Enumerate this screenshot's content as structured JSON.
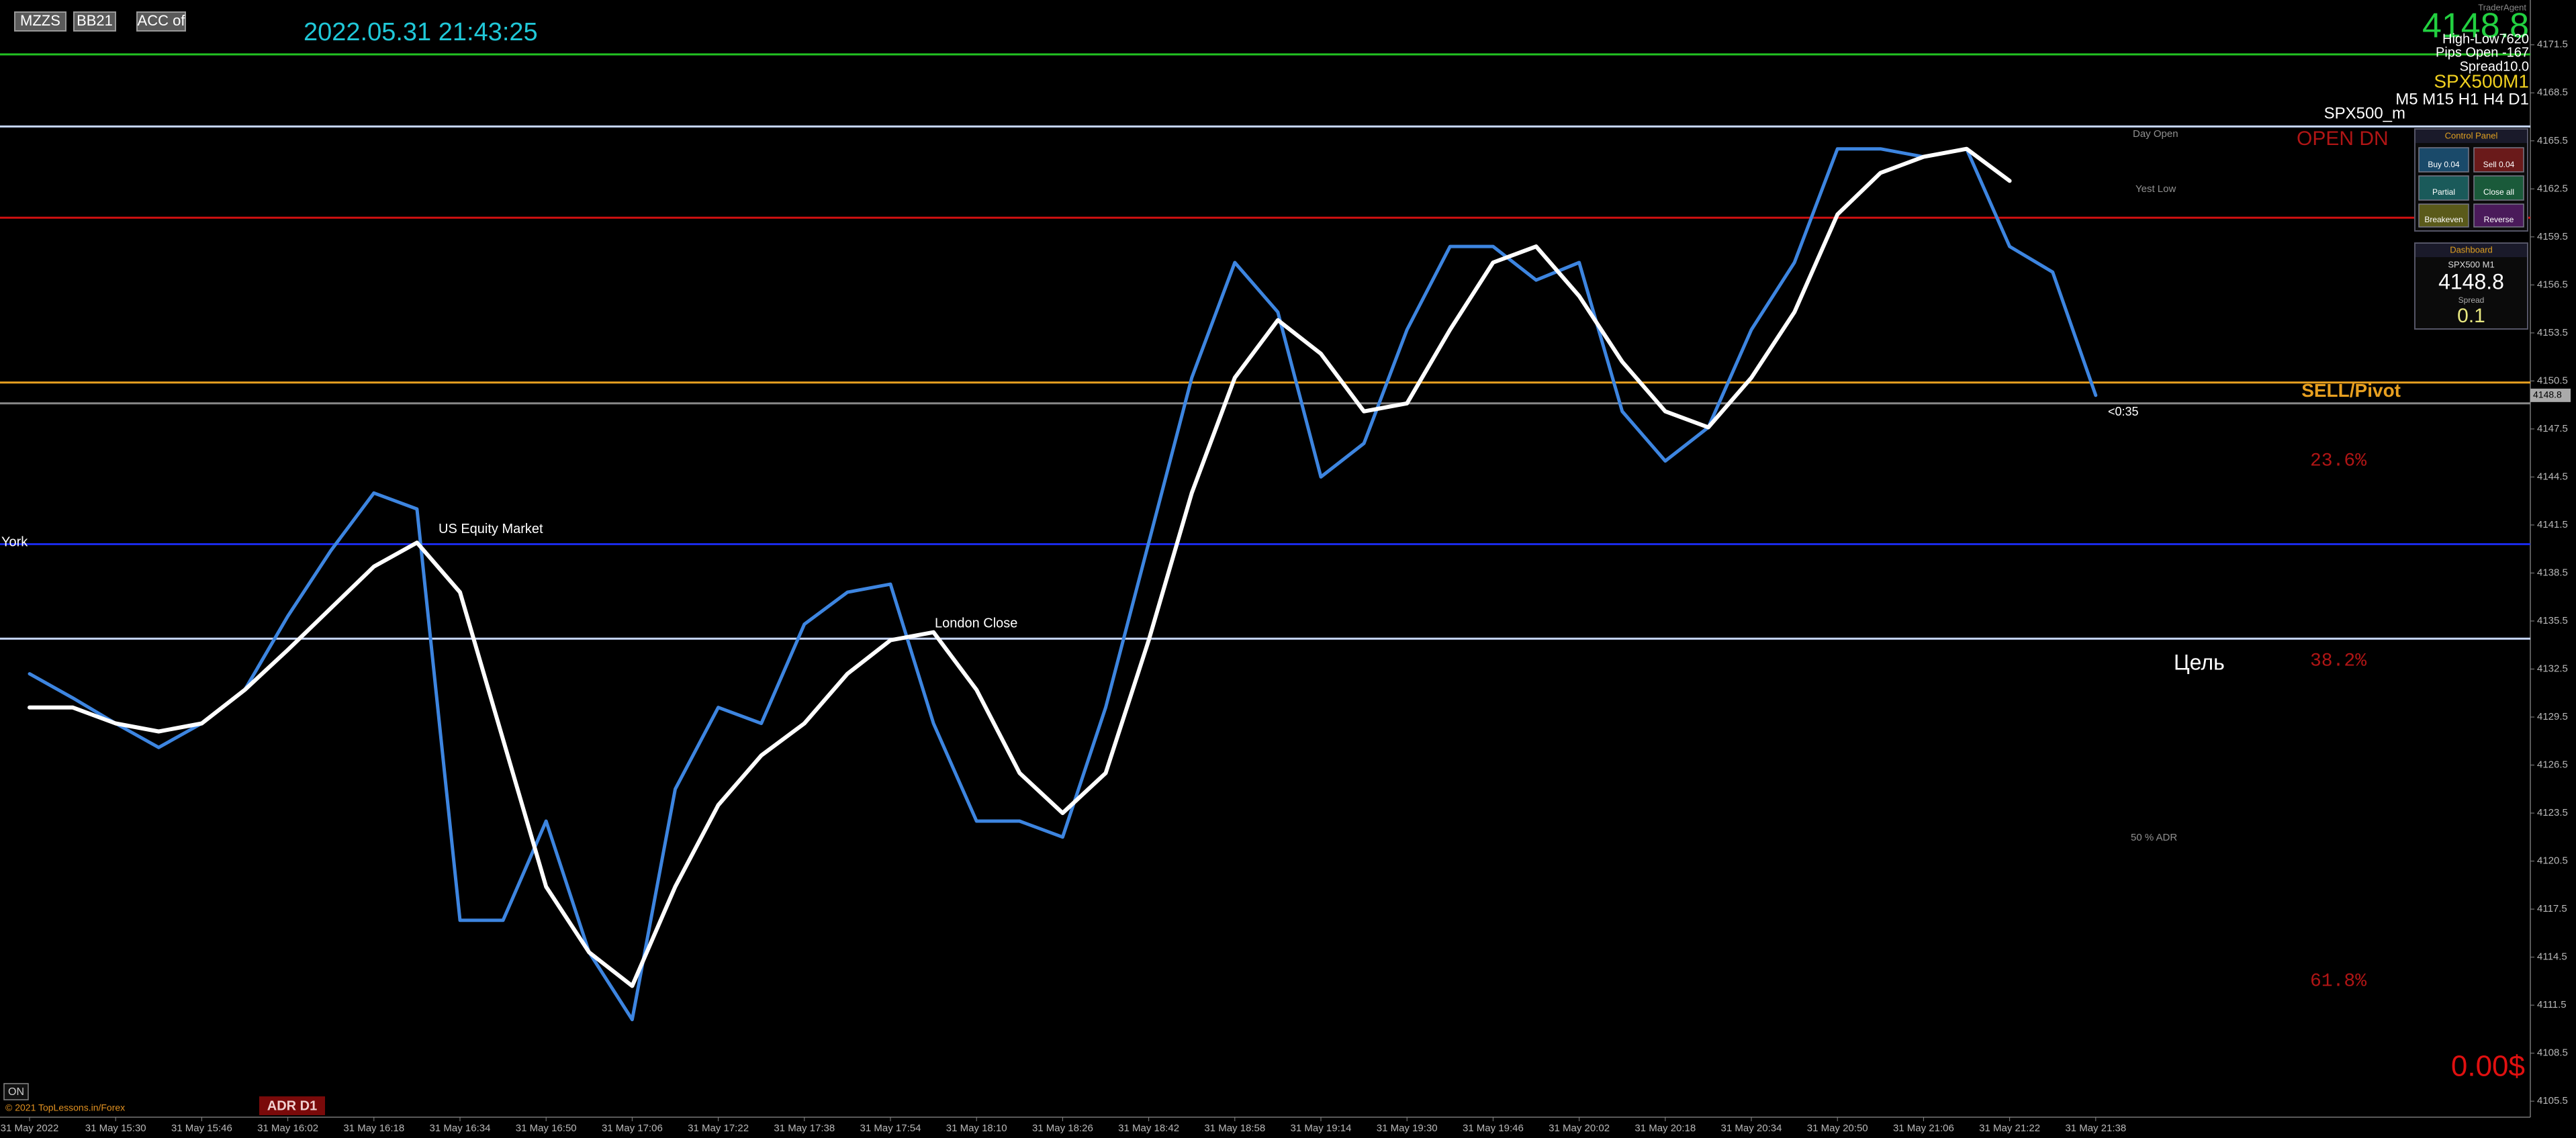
{
  "header": {
    "buttons": [
      "MZZS",
      "BB21",
      "ACC of"
    ],
    "datetime": "2022.05.31 21:43:25"
  },
  "info": {
    "brand": "TraderAgent",
    "price": "4148.8",
    "high_low": "High-Low7620",
    "pips_open": "Pips Open -167",
    "spread": "Spread10.0",
    "symbol": "SPX500M1",
    "timeframes": "M5 M15 H1 H4 D1",
    "symbol2": "SPX500_m"
  },
  "control_panel": {
    "title": "Control Panel",
    "buttons": [
      "Buy 0.04",
      "Sell 0.04",
      "Partial",
      "Close all",
      "Breakeven",
      "Reverse"
    ]
  },
  "dashboard": {
    "title": "Dashboard",
    "symbol": "SPX500 M1",
    "price": "4148.8",
    "spread_label": "Spread",
    "spread": "0.1"
  },
  "footer": {
    "on": "ON",
    "copyright": "© 2021 TopLessons.in/Forex",
    "adr": "ADR D1",
    "profit": "0.00$",
    "countdown": "<0:35"
  },
  "chart_data": {
    "type": "line",
    "categories": [
      "31 May 2022",
      null,
      "31 May 15:30",
      null,
      "31 May 15:46",
      null,
      "31 May 16:02",
      null,
      "31 May 16:18",
      null,
      "31 May 16:34",
      null,
      "31 May 16:50",
      null,
      "31 May 17:06",
      null,
      "31 May 17:22",
      null,
      "31 May 17:38",
      null,
      "31 May 17:54",
      null,
      "31 May 18:10",
      null,
      "31 May 18:26",
      null,
      "31 May 18:42",
      null,
      "31 May 18:58",
      null,
      "31 May 19:14",
      null,
      "31 May 19:30",
      null,
      "31 May 19:46",
      null,
      "31 May 20:02",
      null,
      "31 May 20:18",
      null,
      "31 May 20:34",
      null,
      "31 May 20:50",
      null,
      "31 May 21:06",
      null,
      "31 May 21:22",
      null,
      "31 May 21:38"
    ],
    "series": [
      {
        "color": "#3d85e0",
        "values": [
          4132.2,
          4130.7,
          4129.1,
          4127.6,
          4129.1,
          4131.2,
          4135.8,
          4139.9,
          4143.5,
          4142.5,
          4116.8,
          4116.8,
          4123.0,
          4114.8,
          4110.6,
          4125.0,
          4130.1,
          4129.1,
          4135.3,
          4137.3,
          4137.8,
          4129.1,
          4123.0,
          4123.0,
          4122.0,
          4130.1,
          4140.4,
          4150.7,
          4157.9,
          4154.8,
          4144.5,
          4146.6,
          4153.7,
          4158.9,
          4158.9,
          4156.8,
          4157.9,
          4148.6,
          4145.5,
          4147.6,
          4153.7,
          4157.9,
          4165.0,
          4165.0,
          4164.5,
          4165.0,
          4158.9,
          4157.3,
          4149.6
        ]
      },
      {
        "color": "#ffffff",
        "values": [
          4130.1,
          4130.1,
          4129.1,
          4128.6,
          4129.1,
          4131.2,
          4133.7,
          4136.3,
          4138.9,
          4140.4,
          4137.3,
          4128.1,
          4118.9,
          4114.8,
          4112.7,
          4118.9,
          4124.0,
          4127.1,
          4129.1,
          4132.2,
          4134.3,
          4134.8,
          4131.2,
          4126.0,
          4123.5,
          4126.0,
          4134.3,
          4143.5,
          4150.7,
          4154.3,
          4152.2,
          4148.6,
          4149.1,
          4153.7,
          4157.9,
          4158.9,
          4155.8,
          4151.7,
          4148.6,
          4147.6,
          4150.7,
          4154.8,
          4160.9,
          4163.5,
          4164.5,
          4165.0,
          4163.0,
          null,
          null
        ]
      }
    ],
    "ylim": [
      4104.5,
      4174.3
    ],
    "yticks": [
      4105.5,
      4108.5,
      4111.5,
      4114.5,
      4117.5,
      4120.5,
      4123.5,
      4126.5,
      4129.5,
      4132.5,
      4135.5,
      4138.5,
      4141.5,
      4144.5,
      4147.5,
      4150.5,
      4153.5,
      4156.5,
      4159.5,
      4162.5,
      4165.5,
      4168.5,
      4171.5
    ],
    "grid": false,
    "levels": [
      {
        "value": 4170.9,
        "color": "#22c322"
      },
      {
        "value": 4166.4,
        "color": "#c8d8ff"
      },
      {
        "value": 4160.7,
        "color": "#d01010"
      },
      {
        "value": 4150.4,
        "color": "#e8a020",
        "label": "SELL/Pivot"
      },
      {
        "value": 4149.1,
        "color": "#888888"
      },
      {
        "value": 4140.3,
        "color": "#1a2ae8",
        "label": "US Equity Market"
      },
      {
        "value": 4134.4,
        "color": "#c8d8ff",
        "label": "London Close"
      }
    ],
    "annotations": [
      "OPEN DN",
      "Day Open",
      "Yest Low",
      "23.6%",
      "38.2%",
      "61.8%",
      "Цель",
      "50 % ADR",
      "York"
    ]
  }
}
